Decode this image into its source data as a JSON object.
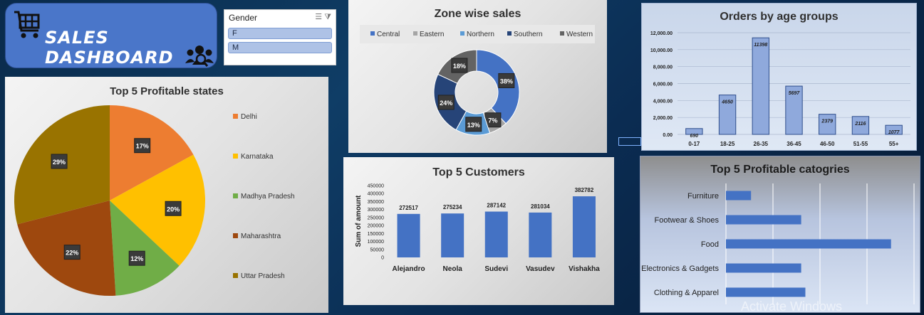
{
  "header": {
    "title": "SALES DASHBOARD"
  },
  "slicer": {
    "title": "Gender",
    "items": [
      "F",
      "M"
    ]
  },
  "watermark": "Activate Windows",
  "chart_data": [
    {
      "id": "profitable-states",
      "type": "pie",
      "title": "Top 5 Profitable states",
      "categories": [
        "Delhi",
        "Karnataka",
        "Madhya Pradesh",
        "Maharashtra",
        "Uttar Pradesh"
      ],
      "values": [
        17,
        20,
        12,
        22,
        29
      ],
      "labels": [
        "17%",
        "20%",
        "12%",
        "22%",
        "29%"
      ],
      "colors": [
        "#ed7d31",
        "#ffc000",
        "#70ad47",
        "#9e480e",
        "#997300"
      ],
      "legend": "right"
    },
    {
      "id": "zone-sales",
      "type": "pie",
      "subtype": "doughnut",
      "title": "Zone wise sales",
      "categories": [
        "Central",
        "Eastern",
        "Northern",
        "Southern",
        "Western"
      ],
      "values": [
        38,
        7,
        13,
        24,
        18
      ],
      "labels": [
        "38%",
        "7%",
        "13%",
        "24%",
        "18%"
      ],
      "colors": [
        "#4472c4",
        "#a5a5a5",
        "#5b9bd5",
        "#264478",
        "#636363"
      ],
      "legend": "top"
    },
    {
      "id": "age-orders",
      "type": "bar",
      "title": "Orders by age groups",
      "categories": [
        "0-17",
        "18-25",
        "26-35",
        "36-45",
        "46-50",
        "51-55",
        "55+"
      ],
      "values": [
        690,
        4650,
        11398,
        5697,
        2379,
        2116,
        1077
      ],
      "ylim": [
        0,
        12000
      ],
      "yticks": [
        "0.00",
        "2,000.00",
        "4,000.00",
        "6,000.00",
        "8,000.00",
        "10,000.00",
        "12,000.00"
      ],
      "grid": true
    },
    {
      "id": "top-customers",
      "type": "bar",
      "title": "Top 5 Customers",
      "ylabel": "Sum of amount",
      "categories": [
        "Alejandro",
        "Neola",
        "Sudevi",
        "Vasudev",
        "Vishakha"
      ],
      "values": [
        272517,
        275234,
        287142,
        281034,
        382782
      ],
      "ylim": [
        0,
        450000
      ],
      "yticks": [
        "0",
        "50000",
        "100000",
        "150000",
        "200000",
        "250000",
        "300000",
        "350000",
        "400000",
        "450000"
      ]
    },
    {
      "id": "profitable-categories",
      "type": "bar",
      "orientation": "horizontal",
      "title": "Top 5  Profitable catogries",
      "categories": [
        "Furniture",
        "Footwear & Shoes",
        "Food",
        "Electronics & Gadgets",
        "Clothing & Apparel"
      ],
      "values": [
        12,
        36,
        79,
        36,
        38
      ],
      "xlim": [
        0,
        90
      ],
      "grid": true
    }
  ]
}
